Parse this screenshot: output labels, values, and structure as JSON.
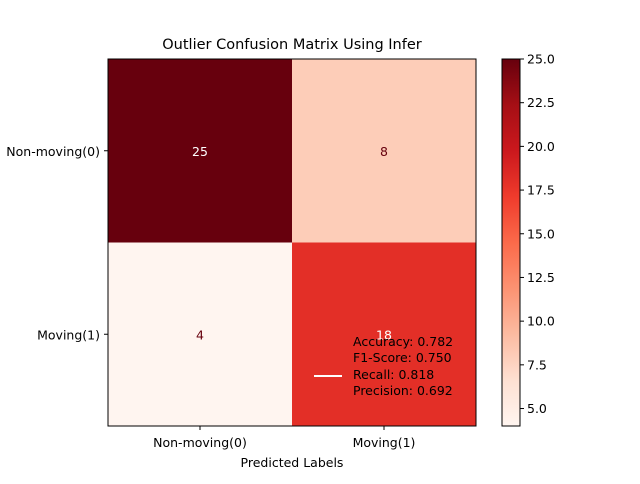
{
  "chart_data": {
    "type": "heatmap",
    "title": "Outlier Confusion Matrix Using Infer",
    "xlabel": "Predicted Labels",
    "ylabel": "",
    "x_categories": [
      "Non-moving(0)",
      "Moving(1)"
    ],
    "y_categories": [
      "Non-moving(0)",
      "Moving(1)"
    ],
    "values": [
      [
        25,
        8
      ],
      [
        4,
        18
      ]
    ],
    "colormap": "Reds",
    "color_range": [
      4,
      25
    ],
    "colorbar_ticks": [
      "5.0",
      "7.5",
      "10.0",
      "12.5",
      "15.0",
      "17.5",
      "20.0",
      "22.5",
      "25.0"
    ],
    "legend": {
      "placement": "lower-right",
      "line_color": "#ffffff",
      "entries": [
        "Accuracy: 0.782",
        "F1-Score: 0.750",
        "Recall: 0.818",
        "Precision: 0.692"
      ]
    },
    "grid": false
  }
}
